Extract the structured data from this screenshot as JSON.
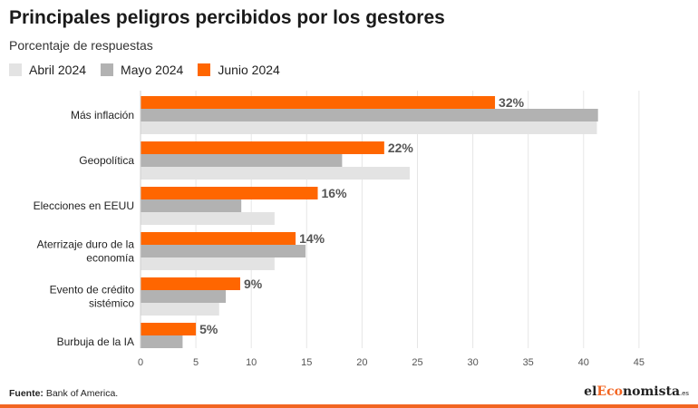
{
  "header": {
    "title": "Principales peligros percibidos por los gestores",
    "subtitle": "Porcentaje de respuestas"
  },
  "legend": [
    {
      "label": "Abril 2024",
      "color": "#e3e3e3"
    },
    {
      "label": "Mayo 2024",
      "color": "#b2b2b2"
    },
    {
      "label": "Junio 2024",
      "color": "#ff6600"
    }
  ],
  "chart_data": {
    "type": "bar",
    "orientation": "horizontal",
    "title": "Principales peligros percibidos por los gestores",
    "subtitle": "Porcentaje de respuestas",
    "categories": [
      [
        "Más inflación"
      ],
      [
        "Geopolítica"
      ],
      [
        "Elecciones en EEUU"
      ],
      [
        "Aterrizaje duro de la",
        "economía"
      ],
      [
        "Evento de crédito",
        "sistémico"
      ],
      [
        "Burbuja de la IA"
      ]
    ],
    "series": [
      {
        "name": "Junio 2024",
        "color": "#ff6600",
        "values": [
          32,
          22,
          16,
          14,
          9,
          5
        ],
        "labels": [
          "32%",
          "22%",
          "16%",
          "14%",
          "9%",
          "5%"
        ]
      },
      {
        "name": "Mayo 2024",
        "color": "#b2b2b2",
        "values": [
          41.3,
          18.2,
          9.1,
          14.9,
          7.7,
          3.8
        ]
      },
      {
        "name": "Abril 2024",
        "color": "#e3e3e3",
        "values": [
          41.2,
          24.3,
          12.1,
          12.1,
          7.1,
          null
        ]
      }
    ],
    "xticks": [
      "0",
      "5",
      "10",
      "15",
      "20",
      "25",
      "30",
      "35",
      "40",
      "45"
    ],
    "xlim": [
      0,
      45
    ],
    "grid": true,
    "legend_position": "top-left"
  },
  "footer": {
    "source_label": "Fuente:",
    "source_text": " Bank of America.",
    "logo_left": "el",
    "logo_mid": "Eco",
    "logo_right": "nomista",
    "logo_tld": ".es"
  }
}
